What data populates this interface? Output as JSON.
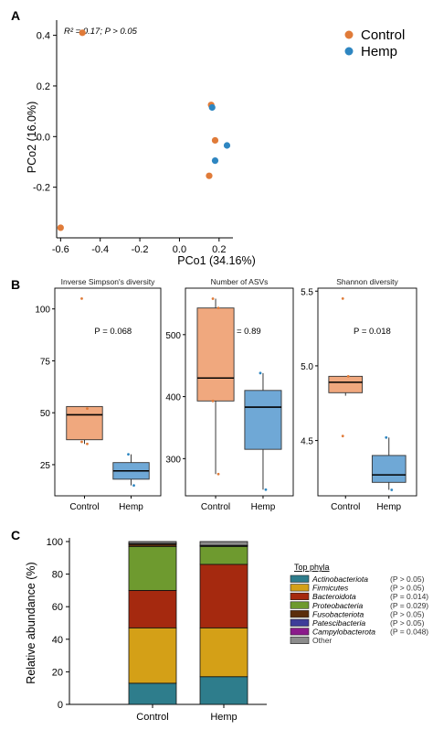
{
  "colors": {
    "control": "#e07b39",
    "hemp": "#2e86c1",
    "control_box": "#f0a87e",
    "hemp_box": "#6fa8d6",
    "actinobacteriota": "#2e7d8c",
    "firmicutes": "#d4a017",
    "bacteroidota": "#a5290f",
    "proteobacteria": "#6e9a2f",
    "fusobacteriota": "#5a2d0c",
    "patescibacteria": "#3d3d99",
    "campylobacterota": "#8b1a8b",
    "other": "#8c8c8c"
  },
  "chart_data": [
    {
      "panel": "A",
      "type": "scatter",
      "xlabel": "PCo1 (34.16%)",
      "ylabel": "PCo2 (16.0%)",
      "xlim": [
        -0.62,
        0.27
      ],
      "ylim": [
        -0.4,
        0.46
      ],
      "xticks": [
        "-0.6",
        "-0.4",
        "-0.2",
        "0.0",
        "0.2"
      ],
      "xtick_values": [
        -0.6,
        -0.4,
        -0.2,
        0.0,
        0.2
      ],
      "yticks": [
        "0.4",
        "0.2",
        "0.0",
        "-0.2"
      ],
      "ytick_values": [
        0.4,
        0.2,
        0.0,
        -0.2
      ],
      "annotation": "R² = 0.17;  P > 0.05",
      "legend": [
        {
          "name": "Control",
          "color": "#e07b39"
        },
        {
          "name": "Hemp",
          "color": "#2e86c1"
        }
      ],
      "series": [
        {
          "name": "Control",
          "points": [
            [
              -0.49,
              0.41
            ],
            [
              -0.6,
              -0.36
            ],
            [
              0.16,
              0.125
            ],
            [
              0.18,
              -0.015
            ],
            [
              0.15,
              -0.155
            ]
          ]
        },
        {
          "name": "Hemp",
          "points": [
            [
              0.165,
              0.115
            ],
            [
              0.24,
              -0.035
            ],
            [
              0.18,
              -0.095
            ]
          ]
        }
      ]
    },
    {
      "panel": "B",
      "type": "box",
      "title": "Inverse Simpson's diversity",
      "pvalue": "P = 0.068",
      "categories": [
        "Control",
        "Hemp"
      ],
      "ylim": [
        10,
        110
      ],
      "yticks": [
        "25",
        "50",
        "75",
        "100"
      ],
      "ytick_values": [
        25,
        50,
        75,
        100
      ],
      "boxes": [
        {
          "name": "Control",
          "min": 35,
          "q1": 37,
          "median": 49,
          "q3": 53,
          "max": 53,
          "points": [
            105,
            52,
            36,
            35
          ]
        },
        {
          "name": "Hemp",
          "min": 15,
          "q1": 18,
          "median": 22,
          "q3": 26,
          "max": 30,
          "points": [
            30,
            15
          ]
        }
      ]
    },
    {
      "panel": "B",
      "type": "box",
      "title": "Number of ASVs",
      "pvalue": "P = 0.89",
      "categories": [
        "Control",
        "Hemp"
      ],
      "ylim": [
        240,
        575
      ],
      "yticks": [
        "300",
        "400",
        "500"
      ],
      "ytick_values": [
        300,
        400,
        500
      ],
      "boxes": [
        {
          "name": "Control",
          "min": 275,
          "q1": 393,
          "median": 430,
          "q3": 543,
          "max": 558,
          "points": [
            558,
            543,
            393,
            275
          ]
        },
        {
          "name": "Hemp",
          "min": 250,
          "q1": 315,
          "median": 383,
          "q3": 410,
          "max": 438,
          "points": [
            438,
            250
          ]
        }
      ]
    },
    {
      "panel": "B",
      "type": "box",
      "title": "Shannon diversity",
      "pvalue": "P = 0.018",
      "categories": [
        "Control",
        "Hemp"
      ],
      "ylim": [
        4.13,
        5.52
      ],
      "yticks": [
        "4.5",
        "5.0",
        "5.5"
      ],
      "ytick_values": [
        4.5,
        5.0,
        5.5
      ],
      "boxes": [
        {
          "name": "Control",
          "min": 4.8,
          "q1": 4.82,
          "median": 4.89,
          "q3": 4.93,
          "max": 4.93,
          "points": [
            5.45,
            4.93,
            4.53
          ]
        },
        {
          "name": "Hemp",
          "min": 4.17,
          "q1": 4.22,
          "median": 4.27,
          "q3": 4.4,
          "max": 4.52,
          "points": [
            4.52,
            4.17
          ]
        }
      ]
    },
    {
      "panel": "C",
      "type": "stacked-bar",
      "ylabel": "Relative abundance (%)",
      "ylim": [
        0,
        100
      ],
      "yticks": [
        "0",
        "20",
        "40",
        "60",
        "80",
        "100"
      ],
      "ytick_values": [
        0,
        20,
        40,
        60,
        80,
        100
      ],
      "categories": [
        "Control",
        "Hemp"
      ],
      "legend_title": "Top phyla",
      "series": [
        {
          "name": "Actinobacteriota",
          "p": "(P > 0.05)",
          "color": "#2e7d8c",
          "values": [
            13,
            17
          ]
        },
        {
          "name": "Firmicutes",
          "p": "(P > 0.05)",
          "color": "#d4a017",
          "values": [
            34,
            30
          ]
        },
        {
          "name": "Bacteroidota",
          "p": "(P = 0.014)",
          "color": "#a5290f",
          "values": [
            23,
            39
          ]
        },
        {
          "name": "Proteobacteria",
          "p": "(P = 0.029)",
          "color": "#6e9a2f",
          "values": [
            27,
            11
          ]
        },
        {
          "name": "Fusobacteriota",
          "p": "(P > 0.05)",
          "color": "#5a2d0c",
          "values": [
            1.3,
            0.3
          ]
        },
        {
          "name": "Patescibacteria",
          "p": "(P > 0.05)",
          "color": "#3d3d99",
          "values": [
            0.3,
            0.3
          ]
        },
        {
          "name": "Campylobacterota",
          "p": "(P = 0.048)",
          "color": "#8b1a8b",
          "values": [
            0.2,
            0.1
          ]
        },
        {
          "name": "Other",
          "p": "",
          "color": "#8c8c8c",
          "values": [
            1.2,
            2.3
          ]
        }
      ]
    }
  ],
  "panel_labels": [
    "A",
    "B",
    "C"
  ]
}
